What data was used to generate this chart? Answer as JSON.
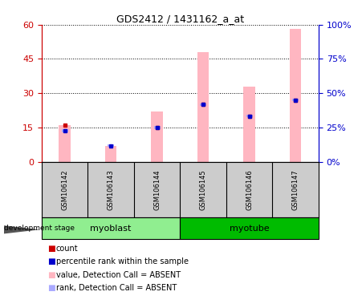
{
  "title": "GDS2412 / 1431162_a_at",
  "samples": [
    "GSM106142",
    "GSM106143",
    "GSM106144",
    "GSM106145",
    "GSM106146",
    "GSM106147"
  ],
  "groups": [
    {
      "name": "myoblast",
      "indices": [
        0,
        1,
        2
      ],
      "color": "#90EE90"
    },
    {
      "name": "myotube",
      "indices": [
        3,
        4,
        5
      ],
      "color": "#00BB00"
    }
  ],
  "pink_bar_values": [
    16.0,
    7.0,
    22.0,
    48.0,
    33.0,
    58.0
  ],
  "blue_marker_vals": [
    13.5,
    7.0,
    15.0,
    25.0,
    20.0,
    27.0
  ],
  "red_dot_vals": [
    16.0,
    0.0,
    15.0,
    25.0,
    20.0,
    27.0
  ],
  "ylim_left": [
    0,
    60
  ],
  "yticks_left": [
    0,
    15,
    30,
    45,
    60
  ],
  "ytick_right_vals": [
    0,
    25,
    50,
    75,
    100
  ],
  "yticks_right_labels": [
    "0%",
    "25%",
    "50%",
    "75%",
    "100%"
  ],
  "left_axis_color": "#CC0000",
  "right_axis_color": "#0000CC",
  "pink_bar_color": "#FFB6C1",
  "blue_marker_color": "#AAAAFF",
  "red_dot_color": "#CC0000",
  "blue_dot_color": "#0000CC",
  "bg_color": "#FFFFFF",
  "plot_bg_color": "#FFFFFF",
  "grid_color": "#000000",
  "sample_bg_color": "#CCCCCC",
  "legend_items": [
    {
      "label": "count",
      "color": "#CC0000"
    },
    {
      "label": "percentile rank within the sample",
      "color": "#0000CC"
    },
    {
      "label": "value, Detection Call = ABSENT",
      "color": "#FFB6C1"
    },
    {
      "label": "rank, Detection Call = ABSENT",
      "color": "#AAAAFF"
    }
  ],
  "bar_width": 0.25
}
